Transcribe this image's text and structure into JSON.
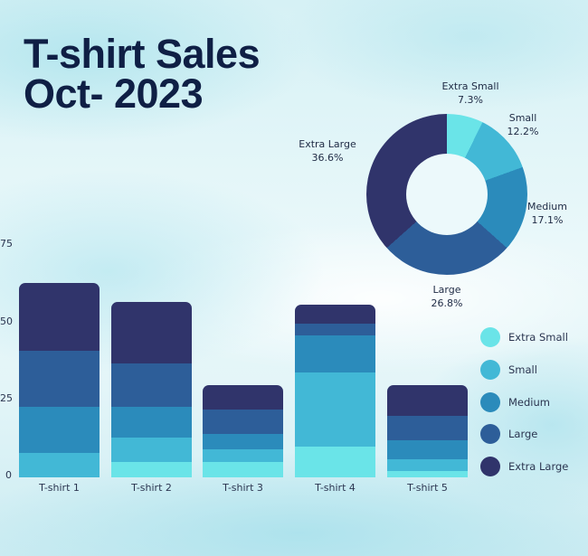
{
  "title": {
    "line1": "T-shirt Sales",
    "line2": "Oct- 2023"
  },
  "colors": {
    "Extra Small": "#6ae4e8",
    "Small": "#42b8d6",
    "Medium": "#2b8bbb",
    "Large": "#2d5e99",
    "Extra Large": "#30346b"
  },
  "chart_data": [
    {
      "type": "bar",
      "subtype": "stacked",
      "title": "T-shirt Sales Oct- 2023",
      "xlabel": "",
      "ylabel": "",
      "ylim": [
        0,
        75
      ],
      "yticks": [
        0,
        25,
        50,
        75
      ],
      "grid": false,
      "legend_position": "right",
      "categories": [
        "T-shirt 1",
        "T-shirt 2",
        "T-shirt 3",
        "T-shirt 4",
        "T-shirt 5"
      ],
      "series": [
        {
          "name": "Extra Small",
          "values": [
            0,
            5,
            5,
            10,
            2
          ]
        },
        {
          "name": "Small",
          "values": [
            8,
            8,
            4,
            24,
            4
          ]
        },
        {
          "name": "Medium",
          "values": [
            15,
            10,
            5,
            12,
            6
          ]
        },
        {
          "name": "Large",
          "values": [
            18,
            14,
            8,
            4,
            8
          ]
        },
        {
          "name": "Extra Large",
          "values": [
            22,
            20,
            8,
            6,
            10
          ]
        }
      ]
    },
    {
      "type": "pie",
      "subtype": "donut",
      "labels": [
        "Extra Small",
        "Small",
        "Medium",
        "Large",
        "Extra Large"
      ],
      "values": [
        7.3,
        12.2,
        17.1,
        26.8,
        36.6
      ],
      "value_labels": [
        "7.3%",
        "12.2%",
        "17.1%",
        "26.8%",
        "36.6%"
      ]
    }
  ],
  "legend": [
    "Extra Small",
    "Small",
    "Medium",
    "Large",
    "Extra Large"
  ]
}
